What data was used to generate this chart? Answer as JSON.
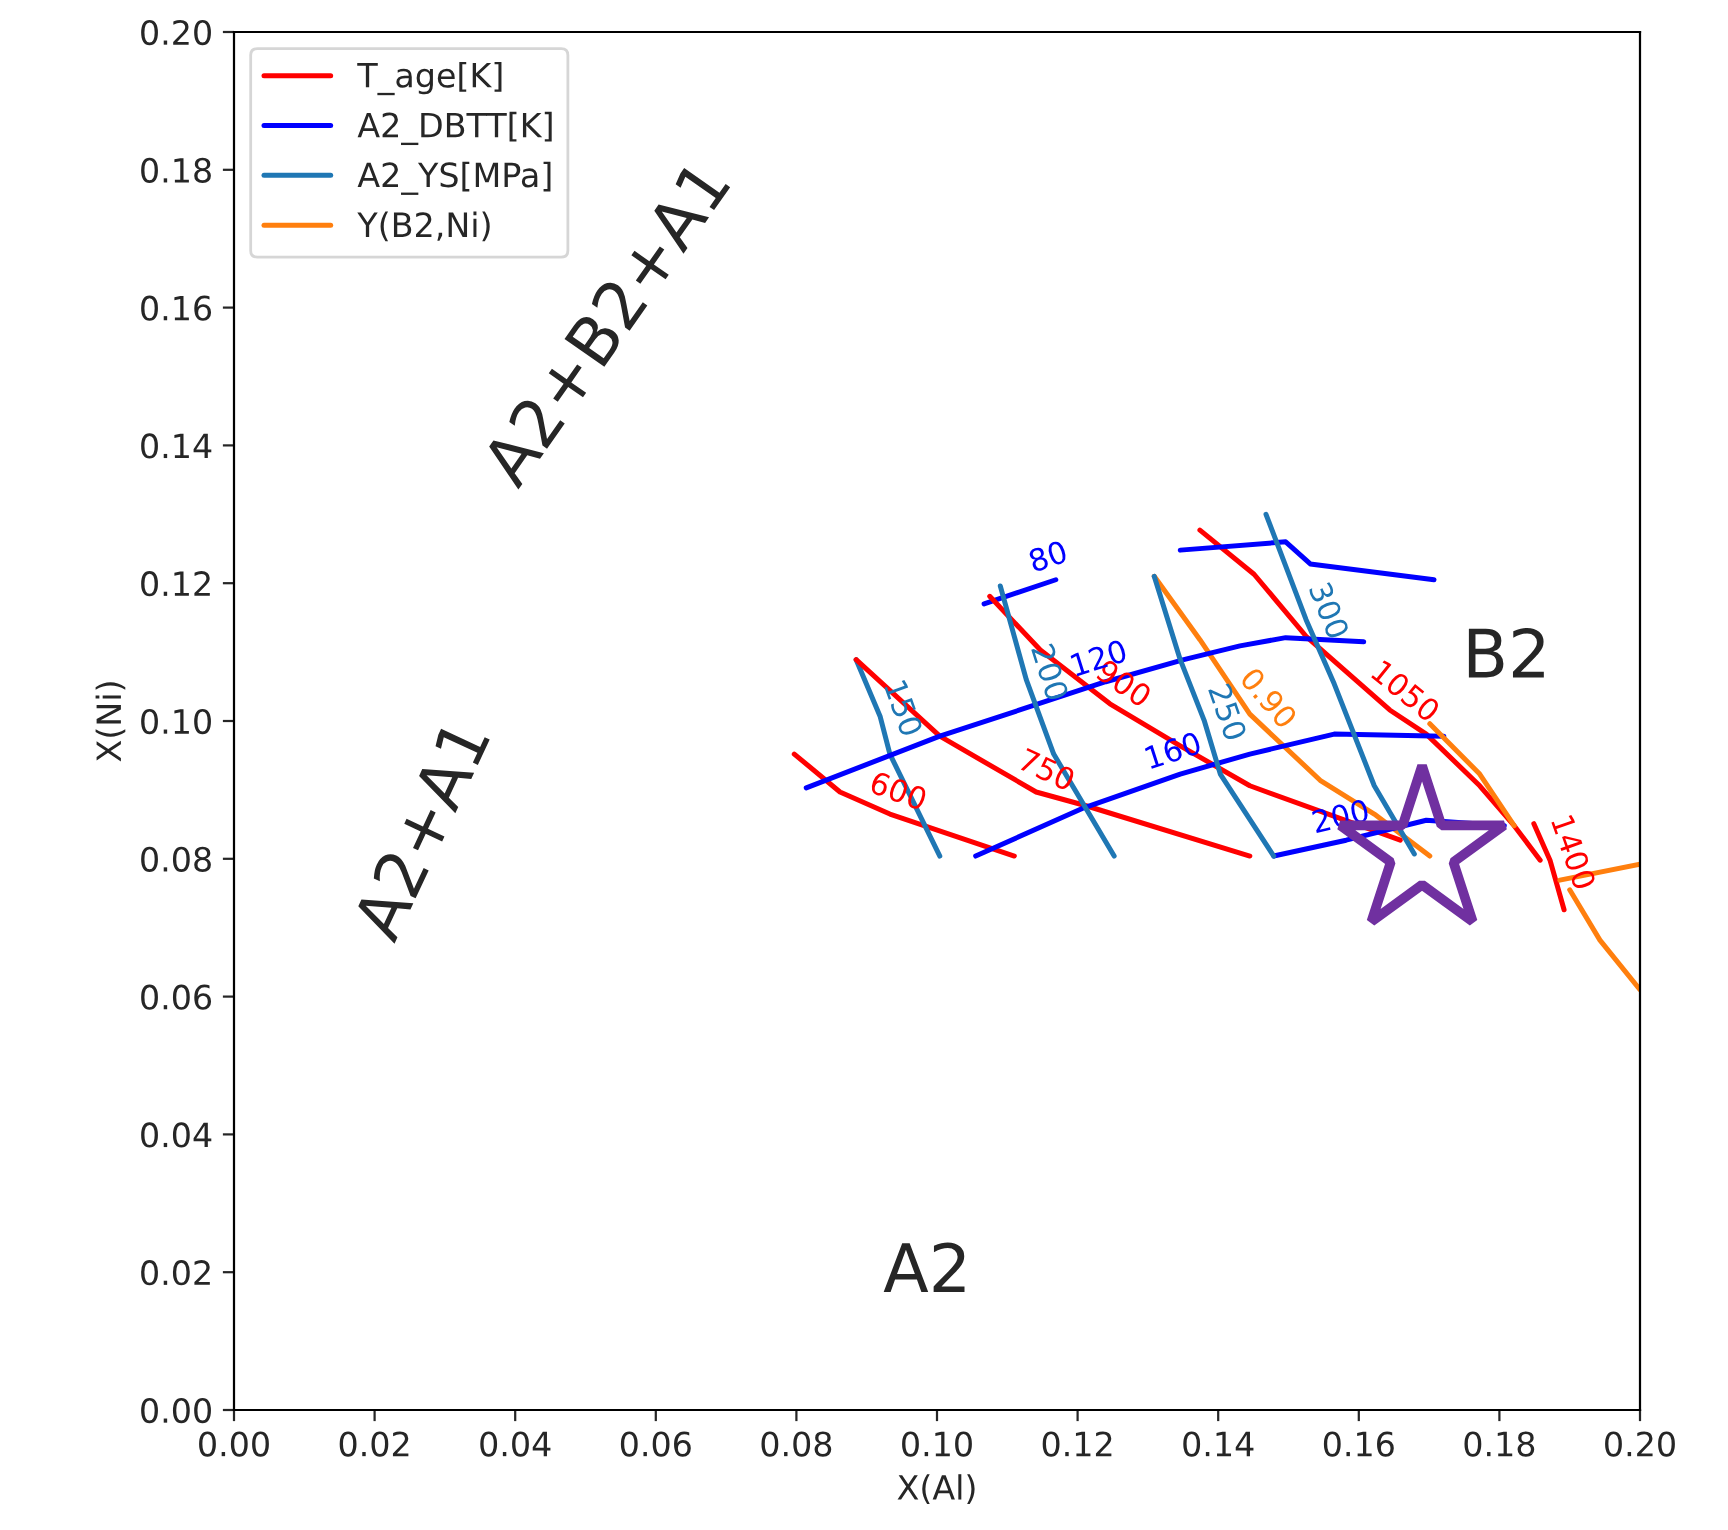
{
  "chart_data": {
    "type": "line",
    "xlabel": "X(Al)",
    "ylabel": "X(Ni)",
    "xlim": [
      0,
      0.2
    ],
    "ylim": [
      0,
      0.2
    ],
    "xticks": [
      {
        "value": 0,
        "label": "0.00"
      },
      {
        "value": 0.02,
        "label": "0.02"
      },
      {
        "value": 0.04,
        "label": "0.04"
      },
      {
        "value": 0.06,
        "label": "0.06"
      },
      {
        "value": 0.08,
        "label": "0.08"
      },
      {
        "value": 0.1,
        "label": "0.10"
      },
      {
        "value": 0.12,
        "label": "0.12"
      },
      {
        "value": 0.14,
        "label": "0.14"
      },
      {
        "value": 0.16,
        "label": "0.16"
      },
      {
        "value": 0.18,
        "label": "0.18"
      },
      {
        "value": 0.2,
        "label": "0.20"
      }
    ],
    "yticks": [
      {
        "value": 0,
        "label": "0.00"
      },
      {
        "value": 0.02,
        "label": "0.02"
      },
      {
        "value": 0.04,
        "label": "0.04"
      },
      {
        "value": 0.06,
        "label": "0.06"
      },
      {
        "value": 0.08,
        "label": "0.08"
      },
      {
        "value": 0.1,
        "label": "0.10"
      },
      {
        "value": 0.12,
        "label": "0.12"
      },
      {
        "value": 0.14,
        "label": "0.14"
      },
      {
        "value": 0.16,
        "label": "0.16"
      },
      {
        "value": 0.18,
        "label": "0.18"
      },
      {
        "value": 0.2,
        "label": "0.20"
      }
    ],
    "grid": false,
    "legend": "top left",
    "line_style": "solid",
    "series": [
      {
        "name": "T_age[K]",
        "color": "#ff0000",
        "x": [
          0.0797,
          0.0862,
          0.0933,
          0.111
        ],
        "values": [
          0.0952,
          0.0897,
          0.0865,
          0.0804
        ]
      },
      {
        "name": "A2_DBTT[K]",
        "color": "#0000ff",
        "x": [
          0.1067,
          0.1169
        ],
        "values": [
          0.117,
          0.1205
        ]
      },
      {
        "name": "A2_YS[MPa]",
        "color": "#1f77b4",
        "x": [
          0.0885,
          0.0919,
          0.0933,
          0.1004
        ],
        "values": [
          0.1089,
          0.1007,
          0.0952,
          0.0804
        ]
      },
      {
        "name": "Y(B2,Ni)",
        "color": "#ff7f0e",
        "x": [
          0.1309,
          0.1374,
          0.1445,
          0.1545,
          0.1622,
          0.1701
        ],
        "values": [
          0.121,
          0.1118,
          0.101,
          0.0914,
          0.0865,
          0.0804
        ]
      },
      {
        "color": "#ff0000",
        "x": [
          0.0885,
          0.1004,
          0.1141,
          0.1212,
          0.1445
        ],
        "values": [
          0.1089,
          0.0978,
          0.0897,
          0.0877,
          0.0804
        ]
      },
      {
        "color": "#ff0000",
        "x": [
          0.1075,
          0.1147,
          0.1246,
          0.1346,
          0.1445,
          0.1659
        ],
        "values": [
          0.1181,
          0.1103,
          0.1025,
          0.0964,
          0.0906,
          0.0827
        ]
      },
      {
        "color": "#ff0000",
        "x": [
          0.1374,
          0.1451,
          0.1525,
          0.1644,
          0.1696,
          0.1772,
          0.1821,
          0.1858
        ],
        "values": [
          0.1277,
          0.1213,
          0.1123,
          0.1016,
          0.0981,
          0.0906,
          0.0848,
          0.0798
        ]
      },
      {
        "color": "#ff0000",
        "x": [
          0.1849,
          0.1872,
          0.1892
        ],
        "values": [
          0.0851,
          0.0798,
          0.0726
        ]
      },
      {
        "color": "#0000ff",
        "x": [
          0.0814,
          0.1004,
          0.124,
          0.1351,
          0.1431,
          0.1496,
          0.1607
        ],
        "values": [
          0.0903,
          0.0978,
          0.1057,
          0.1089,
          0.1109,
          0.1121,
          0.1115
        ]
      },
      {
        "color": "#0000ff",
        "x": [
          0.1055,
          0.1209,
          0.1346,
          0.1445,
          0.1565,
          0.1721
        ],
        "values": [
          0.0804,
          0.0874,
          0.0923,
          0.0952,
          0.0981,
          0.0978
        ]
      },
      {
        "color": "#0000ff",
        "x": [
          0.1479,
          0.1582,
          0.1696,
          0.1807
        ],
        "values": [
          0.0804,
          0.0827,
          0.0856,
          0.0848
        ]
      },
      {
        "color": "#0000ff",
        "x": [
          0.1346,
          0.1496,
          0.1531,
          0.1707
        ],
        "values": [
          0.1248,
          0.126,
          0.1228,
          0.1205
        ]
      },
      {
        "color": "#1f77b4",
        "x": [
          0.109,
          0.1127,
          0.1166,
          0.1252
        ],
        "values": [
          0.1196,
          0.106,
          0.0952,
          0.0804
        ]
      },
      {
        "color": "#1f77b4",
        "x": [
          0.1309,
          0.1346,
          0.138,
          0.1403,
          0.1479
        ],
        "values": [
          0.121,
          0.1089,
          0.1001,
          0.0923,
          0.0804
        ]
      },
      {
        "color": "#1f77b4",
        "x": [
          0.1468,
          0.1525,
          0.1565,
          0.1622,
          0.1679
        ],
        "values": [
          0.13,
          0.1147,
          0.1054,
          0.0906,
          0.0807
        ]
      },
      {
        "color": "#ff7f0e",
        "x": [
          0.1701,
          0.1772,
          0.1821
        ],
        "values": [
          0.0996,
          0.0923,
          0.0848
        ]
      },
      {
        "color": "#ff7f0e",
        "x": [
          0.1886,
          0.2
        ],
        "values": [
          0.0769,
          0.0792
        ]
      },
      {
        "color": "#ff7f0e",
        "x": [
          0.19,
          0.1943,
          0.2
        ],
        "values": [
          0.0755,
          0.0682,
          0.061
        ]
      },
      {
        "type": "scatter",
        "marker": "star",
        "color": "#7030a0",
        "x": [
          0.169
        ],
        "values": [
          0.081
        ]
      }
    ],
    "annotations": [
      "A2+B2+A1",
      "A2+A1",
      "B2",
      "A2",
      {
        "text": "600",
        "x": 0.0933,
        "y": 0.0865
      },
      {
        "text": "750",
        "x": 0.1141,
        "y": 0.0897
      },
      {
        "text": "900",
        "x": 0.1246,
        "y": 0.1025
      },
      {
        "text": "1050",
        "x": 0.1644,
        "y": 0.1016
      },
      {
        "text": "1400",
        "x": 0.1872,
        "y": 0.0798
      },
      {
        "text": "80",
        "x": 0.1169,
        "y": 0.1205
      },
      {
        "text": "120",
        "x": 0.124,
        "y": 0.1057
      },
      {
        "text": "160",
        "x": 0.1346,
        "y": 0.0923
      },
      {
        "text": "200",
        "x": 0.1582,
        "y": 0.0827
      },
      {
        "text": "150",
        "x": 0.0919,
        "y": 0.1007
      },
      {
        "text": "200",
        "x": 0.1127,
        "y": 0.106
      },
      {
        "text": "250",
        "x": 0.138,
        "y": 0.1001
      },
      {
        "text": "300",
        "x": 0.1525,
        "y": 0.1147
      },
      {
        "text": "0.90",
        "x": 0.1445,
        "y": 0.101
      }
    ]
  }
}
